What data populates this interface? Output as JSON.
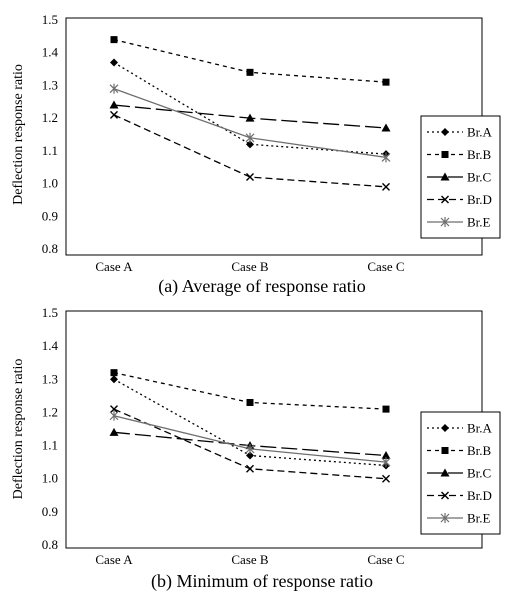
{
  "chart_data": [
    {
      "type": "line",
      "caption": "(a) Average of response ratio",
      "ylabel": "Deflection response ratio",
      "categories": [
        "Case A",
        "Case B",
        "Case C"
      ],
      "ylim": [
        0.8,
        1.5
      ],
      "yticks": [
        "0.8",
        "0.9",
        "1.0",
        "1.1",
        "1.2",
        "1.3",
        "1.4",
        "1.5"
      ],
      "grid": false,
      "legend_position": "right",
      "series": [
        {
          "name": "Br.A",
          "values": [
            1.37,
            1.12,
            1.09
          ],
          "dash": "dotted",
          "marker": "diamond"
        },
        {
          "name": "Br.B",
          "values": [
            1.44,
            1.34,
            1.31
          ],
          "dash": "dash-dot",
          "marker": "square"
        },
        {
          "name": "Br.C",
          "values": [
            1.24,
            1.2,
            1.17
          ],
          "dash": "long-dash",
          "marker": "triangle"
        },
        {
          "name": "Br.D",
          "values": [
            1.21,
            1.02,
            0.99
          ],
          "dash": "dash",
          "marker": "x"
        },
        {
          "name": "Br.E",
          "values": [
            1.29,
            1.14,
            1.08
          ],
          "dash": "solid-gray",
          "marker": "asterisk"
        }
      ]
    },
    {
      "type": "line",
      "caption": "(b) Minimum of response ratio",
      "ylabel": "Deflection response ratio",
      "categories": [
        "Case A",
        "Case B",
        "Case C"
      ],
      "ylim": [
        0.8,
        1.5
      ],
      "yticks": [
        "0.8",
        "0.9",
        "1.0",
        "1.1",
        "1.2",
        "1.3",
        "1.4",
        "1.5"
      ],
      "grid": false,
      "legend_position": "right",
      "series": [
        {
          "name": "Br.A",
          "values": [
            1.3,
            1.07,
            1.04
          ],
          "dash": "dotted",
          "marker": "diamond"
        },
        {
          "name": "Br.B",
          "values": [
            1.32,
            1.23,
            1.21
          ],
          "dash": "dash-dot",
          "marker": "square"
        },
        {
          "name": "Br.C",
          "values": [
            1.14,
            1.1,
            1.07
          ],
          "dash": "long-dash",
          "marker": "triangle"
        },
        {
          "name": "Br.D",
          "values": [
            1.21,
            1.03,
            1.0
          ],
          "dash": "dash",
          "marker": "x"
        },
        {
          "name": "Br.E",
          "values": [
            1.19,
            1.09,
            1.05
          ],
          "dash": "solid-gray",
          "marker": "asterisk"
        }
      ]
    }
  ],
  "colors": {
    "line": "#000000",
    "gray_line": "#6e6e6e",
    "axis": "#000000"
  }
}
